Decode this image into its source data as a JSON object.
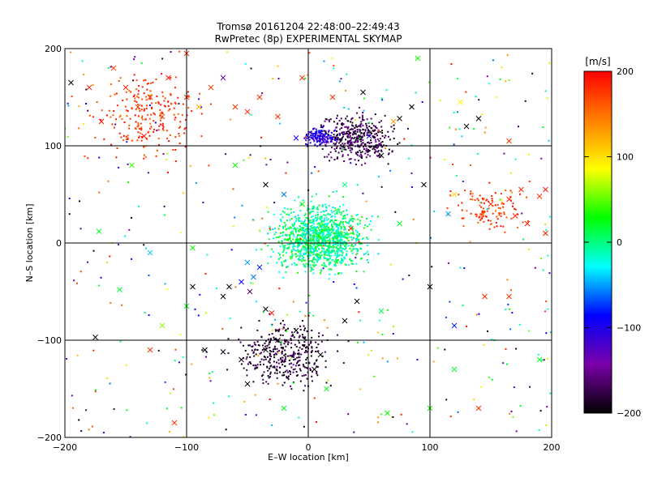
{
  "chart_data": {
    "type": "scatter",
    "title": "Tromsø 20161204 22:48:00–22:49:43",
    "subtitle": "RwPretec (8p) EXPERIMENTAL SKYMAP",
    "xlabel": "E–W location [km]",
    "ylabel": "N–S location [km]",
    "xlim": [
      -200,
      200
    ],
    "ylim": [
      -200,
      200
    ],
    "x_ticks": [
      -200,
      -100,
      0,
      100,
      200
    ],
    "y_ticks": [
      -200,
      -100,
      0,
      100,
      200
    ],
    "x_tick_labels": [
      "−200",
      "−100",
      "0",
      "100",
      "200"
    ],
    "y_tick_labels": [
      "−200",
      "−100",
      "0",
      "100",
      "200"
    ],
    "grid": true,
    "colorbar": {
      "label": "[m/s]",
      "range": [
        -200,
        200
      ],
      "ticks": [
        200,
        100,
        0,
        -100,
        -200
      ],
      "tick_labels": [
        "200",
        "100",
        "0",
        "−100",
        "−200"
      ],
      "colormap": [
        "#000000",
        "#7a00a8",
        "#0000ff",
        "#00ffff",
        "#00ff00",
        "#ffff00",
        "#ff8000",
        "#ff0000"
      ]
    },
    "cross_points": [
      {
        "x": -195,
        "y": 165,
        "v": -200
      },
      {
        "x": -180,
        "y": 160,
        "v": 180
      },
      {
        "x": -170,
        "y": 125,
        "v": 190
      },
      {
        "x": -160,
        "y": 180,
        "v": 170
      },
      {
        "x": -150,
        "y": 160,
        "v": 185
      },
      {
        "x": -140,
        "y": 140,
        "v": 175
      },
      {
        "x": -135,
        "y": 110,
        "v": 190
      },
      {
        "x": -130,
        "y": 150,
        "v": 180
      },
      {
        "x": -120,
        "y": 130,
        "v": 170
      },
      {
        "x": -115,
        "y": 170,
        "v": 190
      },
      {
        "x": -100,
        "y": 150,
        "v": 180
      },
      {
        "x": -100,
        "y": 195,
        "v": 180
      },
      {
        "x": -90,
        "y": 140,
        "v": 120
      },
      {
        "x": -80,
        "y": 160,
        "v": 175
      },
      {
        "x": -70,
        "y": 170,
        "v": -150
      },
      {
        "x": -60,
        "y": 140,
        "v": 180
      },
      {
        "x": -50,
        "y": 135,
        "v": 180
      },
      {
        "x": -40,
        "y": 150,
        "v": 180
      },
      {
        "x": -25,
        "y": 130,
        "v": 180
      },
      {
        "x": -5,
        "y": 170,
        "v": 180
      },
      {
        "x": 20,
        "y": 150,
        "v": 180
      },
      {
        "x": 45,
        "y": 155,
        "v": -200
      },
      {
        "x": 75,
        "y": 128,
        "v": -200
      },
      {
        "x": 85,
        "y": 140,
        "v": -200
      },
      {
        "x": 90,
        "y": 190,
        "v": 30
      },
      {
        "x": 130,
        "y": 120,
        "v": -200
      },
      {
        "x": 140,
        "y": 128,
        "v": -200
      },
      {
        "x": 125,
        "y": 145,
        "v": 90
      },
      {
        "x": 95,
        "y": 60,
        "v": -200
      },
      {
        "x": 120,
        "y": 50,
        "v": 100
      },
      {
        "x": 115,
        "y": 30,
        "v": -50
      },
      {
        "x": 150,
        "y": 40,
        "v": 180
      },
      {
        "x": 165,
        "y": 45,
        "v": 185
      },
      {
        "x": 170,
        "y": 28,
        "v": 190
      },
      {
        "x": 180,
        "y": 20,
        "v": 190
      },
      {
        "x": 190,
        "y": 48,
        "v": 180
      },
      {
        "x": 195,
        "y": 10,
        "v": 190
      },
      {
        "x": -172,
        "y": 12,
        "v": 20
      },
      {
        "x": -130,
        "y": -10,
        "v": -40
      },
      {
        "x": -155,
        "y": -48,
        "v": 20
      },
      {
        "x": -120,
        "y": -85,
        "v": 60
      },
      {
        "x": -130,
        "y": -110,
        "v": 180
      },
      {
        "x": -175,
        "y": -97,
        "v": -200
      },
      {
        "x": -110,
        "y": -185,
        "v": 180
      },
      {
        "x": -95,
        "y": -5,
        "v": 30
      },
      {
        "x": -50,
        "y": -20,
        "v": -50
      },
      {
        "x": -45,
        "y": -35,
        "v": -60
      },
      {
        "x": -40,
        "y": -25,
        "v": -80
      },
      {
        "x": -55,
        "y": -40,
        "v": -90
      },
      {
        "x": -48,
        "y": -50,
        "v": -160
      },
      {
        "x": -35,
        "y": -68,
        "v": -200
      },
      {
        "x": -30,
        "y": -72,
        "v": 185
      },
      {
        "x": -65,
        "y": -45,
        "v": -200
      },
      {
        "x": -70,
        "y": -55,
        "v": -200
      },
      {
        "x": -85,
        "y": -110,
        "v": -200
      },
      {
        "x": -70,
        "y": -112,
        "v": -200
      },
      {
        "x": -55,
        "y": -120,
        "v": -200
      },
      {
        "x": -35,
        "y": -110,
        "v": -200
      },
      {
        "x": -25,
        "y": -100,
        "v": -200
      },
      {
        "x": -10,
        "y": -90,
        "v": -200
      },
      {
        "x": 5,
        "y": -130,
        "v": -200
      },
      {
        "x": 10,
        "y": -115,
        "v": -200
      },
      {
        "x": -50,
        "y": -145,
        "v": -200
      },
      {
        "x": -20,
        "y": -170,
        "v": 20
      },
      {
        "x": 15,
        "y": -150,
        "v": 20
      },
      {
        "x": 65,
        "y": -175,
        "v": 30
      },
      {
        "x": 30,
        "y": -80,
        "v": -200
      },
      {
        "x": 40,
        "y": -60,
        "v": -200
      },
      {
        "x": 25,
        "y": 10,
        "v": 0
      },
      {
        "x": 10,
        "y": 5,
        "v": 20
      },
      {
        "x": 30,
        "y": 60,
        "v": 0
      },
      {
        "x": 35,
        "y": 15,
        "v": 180
      },
      {
        "x": 60,
        "y": -70,
        "v": 10
      },
      {
        "x": 100,
        "y": -45,
        "v": -200
      },
      {
        "x": 120,
        "y": -85,
        "v": -80
      },
      {
        "x": 165,
        "y": 105,
        "v": 180
      },
      {
        "x": 195,
        "y": 55,
        "v": 190
      },
      {
        "x": 175,
        "y": 55,
        "v": 185
      },
      {
        "x": 165,
        "y": -55,
        "v": 180
      },
      {
        "x": 145,
        "y": -55,
        "v": 185
      },
      {
        "x": 190,
        "y": -120,
        "v": 20
      },
      {
        "x": 120,
        "y": -130,
        "v": 20
      },
      {
        "x": 140,
        "y": -170,
        "v": 180
      },
      {
        "x": 50,
        "y": 110,
        "v": -100
      },
      {
        "x": 70,
        "y": 125,
        "v": 130
      },
      {
        "x": 5,
        "y": 110,
        "v": -90
      },
      {
        "x": 15,
        "y": 105,
        "v": -110
      },
      {
        "x": -10,
        "y": 108,
        "v": -100
      },
      {
        "x": -35,
        "y": 60,
        "v": -200
      },
      {
        "x": -20,
        "y": 50,
        "v": -60
      },
      {
        "x": -5,
        "y": 40,
        "v": 30
      },
      {
        "x": 100,
        "y": -170,
        "v": 30
      },
      {
        "x": 60,
        "y": 90,
        "v": -200
      },
      {
        "x": -95,
        "y": -45,
        "v": -200
      },
      {
        "x": -100,
        "y": -65,
        "v": 20
      },
      {
        "x": -60,
        "y": 80,
        "v": 30
      },
      {
        "x": -145,
        "y": 80,
        "v": 40
      },
      {
        "x": 75,
        "y": 20,
        "v": 20
      }
    ],
    "dot_clusters": [
      {
        "region": "north-west",
        "x_range": [
          -200,
          -60
        ],
        "y_range": [
          60,
          200
        ],
        "v_range": [
          150,
          200
        ],
        "count": 230
      },
      {
        "region": "north-centre",
        "x_range": [
          -10,
          90
        ],
        "y_range": [
          70,
          145
        ],
        "v_range": [
          -200,
          -150
        ],
        "count": 420
      },
      {
        "region": "north-centre-blue",
        "x_range": [
          -10,
          30
        ],
        "y_range": [
          95,
          125
        ],
        "v_range": [
          -130,
          -80
        ],
        "count": 130
      },
      {
        "region": "centre",
        "x_range": [
          -50,
          70
        ],
        "y_range": [
          -50,
          60
        ],
        "v_range": [
          -40,
          40
        ],
        "count": 1200
      },
      {
        "region": "south-centre",
        "x_range": [
          -80,
          40
        ],
        "y_range": [
          -170,
          -60
        ],
        "v_range": [
          -200,
          -160
        ],
        "count": 380
      },
      {
        "region": "east",
        "x_range": [
          100,
          200
        ],
        "y_range": [
          -10,
          80
        ],
        "v_range": [
          150,
          200
        ],
        "count": 110
      },
      {
        "region": "scattered",
        "x_range": [
          -200,
          200
        ],
        "y_range": [
          -200,
          200
        ],
        "v_range": [
          -200,
          200
        ],
        "count": 450
      }
    ]
  }
}
